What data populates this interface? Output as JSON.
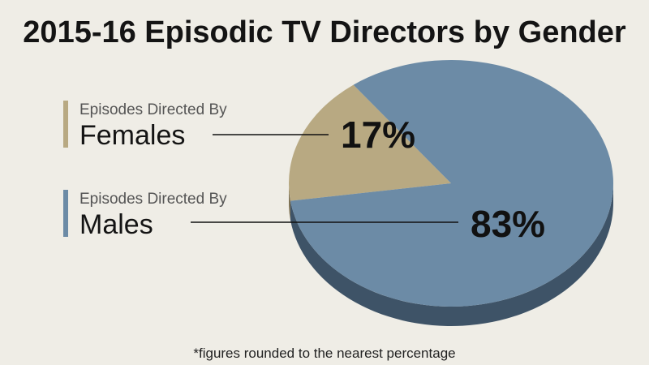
{
  "chart_data": {
    "type": "pie",
    "title": "2015-16 Episodic TV Directors by Gender",
    "categories": [
      "Females",
      "Males"
    ],
    "values": [
      17,
      83
    ],
    "value_labels": [
      "17%",
      "83%"
    ],
    "legend": {
      "placement": "left",
      "entries": [
        {
          "prefix": "Episodes Directed By",
          "label": "Females"
        },
        {
          "prefix": "Episodes Directed By",
          "label": "Males"
        }
      ]
    },
    "footnote": "*figures rounded to the nearest percentage"
  },
  "colors": {
    "background": "#efede6",
    "females": "#b8a982",
    "females_side": "#7e7255",
    "males": "#6c8ba6",
    "males_side": "#3e5367",
    "leader_line": "#111111"
  }
}
